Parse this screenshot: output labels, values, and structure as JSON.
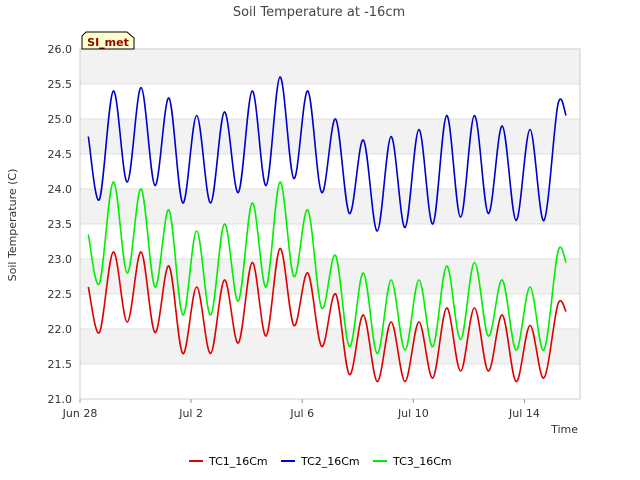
{
  "chart_data": {
    "type": "line",
    "title": "Soil Temperature at -16cm",
    "xlabel": "Time",
    "ylabel": "Soil Temperature (C)",
    "badge": "SI_met",
    "x_unit": "days since Jun 28",
    "xlim": [
      0,
      18
    ],
    "ylim": [
      21.0,
      26.0
    ],
    "y_ticks": [
      "21.0",
      "21.5",
      "22.0",
      "22.5",
      "23.0",
      "23.5",
      "24.0",
      "24.5",
      "25.0",
      "25.5",
      "26.0"
    ],
    "x_ticks": [
      {
        "x": 0,
        "label": "Jun 28"
      },
      {
        "x": 4,
        "label": "Jul 2"
      },
      {
        "x": 8,
        "label": "Jul 6"
      },
      {
        "x": 12,
        "label": "Jul 10"
      },
      {
        "x": 16,
        "label": "Jul 14"
      }
    ],
    "grid": true,
    "legend_position": "bottom",
    "series": [
      {
        "name": "TC1_16Cm",
        "color": "#dd0000",
        "x": [
          0.3,
          0.7,
          1.2,
          1.7,
          2.2,
          2.7,
          3.2,
          3.7,
          4.2,
          4.7,
          5.2,
          5.7,
          6.2,
          6.7,
          7.2,
          7.7,
          8.2,
          8.7,
          9.2,
          9.7,
          10.2,
          10.7,
          11.2,
          11.7,
          12.2,
          12.7,
          13.2,
          13.7,
          14.2,
          14.7,
          15.2,
          15.7,
          16.2,
          16.7,
          17.2,
          17.5
        ],
        "y": [
          22.6,
          21.95,
          23.1,
          22.1,
          23.1,
          21.95,
          22.9,
          21.65,
          22.6,
          21.65,
          22.7,
          21.8,
          22.95,
          21.9,
          23.15,
          22.05,
          22.8,
          21.75,
          22.5,
          21.35,
          22.2,
          21.25,
          22.1,
          21.25,
          22.1,
          21.3,
          22.3,
          21.4,
          22.3,
          21.4,
          22.2,
          21.25,
          22.05,
          21.3,
          22.35,
          22.25
        ]
      },
      {
        "name": "TC2_16Cm",
        "color": "#0000cc",
        "x": [
          0.3,
          0.7,
          1.2,
          1.7,
          2.2,
          2.7,
          3.2,
          3.7,
          4.2,
          4.7,
          5.2,
          5.7,
          6.2,
          6.7,
          7.2,
          7.7,
          8.2,
          8.7,
          9.2,
          9.7,
          10.2,
          10.7,
          11.2,
          11.7,
          12.2,
          12.7,
          13.2,
          13.7,
          14.2,
          14.7,
          15.2,
          15.7,
          16.2,
          16.7,
          17.2,
          17.5
        ],
        "y": [
          24.75,
          23.85,
          25.4,
          24.1,
          25.45,
          24.05,
          25.3,
          23.8,
          25.05,
          23.8,
          25.1,
          23.95,
          25.4,
          24.05,
          25.6,
          24.15,
          25.4,
          23.95,
          25.0,
          23.65,
          24.7,
          23.4,
          24.75,
          23.45,
          24.85,
          23.5,
          25.05,
          23.6,
          25.05,
          23.65,
          24.9,
          23.55,
          24.85,
          23.55,
          25.2,
          25.05
        ]
      },
      {
        "name": "TC3_16Cm",
        "color": "#00ee00",
        "x": [
          0.3,
          0.7,
          1.2,
          1.7,
          2.2,
          2.7,
          3.2,
          3.7,
          4.2,
          4.7,
          5.2,
          5.7,
          6.2,
          6.7,
          7.2,
          7.7,
          8.2,
          8.7,
          9.2,
          9.7,
          10.2,
          10.7,
          11.2,
          11.7,
          12.2,
          12.7,
          13.2,
          13.7,
          14.2,
          14.7,
          15.2,
          15.7,
          16.2,
          16.7,
          17.2,
          17.5
        ],
        "y": [
          23.35,
          22.65,
          24.1,
          22.8,
          24.0,
          22.6,
          23.7,
          22.2,
          23.4,
          22.2,
          23.5,
          22.4,
          23.8,
          22.6,
          24.1,
          22.75,
          23.7,
          22.3,
          23.05,
          21.75,
          22.8,
          21.65,
          22.7,
          21.7,
          22.7,
          21.75,
          22.9,
          21.85,
          22.95,
          21.9,
          22.7,
          21.7,
          22.6,
          21.7,
          23.1,
          22.95
        ]
      }
    ]
  }
}
